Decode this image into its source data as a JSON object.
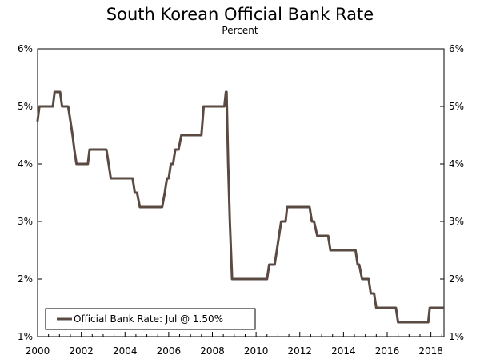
{
  "chart_data": {
    "type": "line",
    "title": "South Korean Official Bank Rate",
    "subtitle": "Percent",
    "xlabel": "",
    "ylabel": "",
    "xlim": [
      2000,
      2018.6
    ],
    "ylim": [
      1,
      6
    ],
    "x_ticks": [
      2000,
      2002,
      2004,
      2006,
      2008,
      2010,
      2012,
      2014,
      2016,
      2018
    ],
    "y_ticks": [
      1,
      2,
      3,
      4,
      5,
      6
    ],
    "y_tick_labels": [
      "1%",
      "2%",
      "3%",
      "4%",
      "5%",
      "6%"
    ],
    "legend": {
      "position": "bottom-left",
      "label": "Official Bank Rate: Jul @ 1.50%"
    },
    "series": [
      {
        "name": "Official Bank Rate: Jul @ 1.50%",
        "color": "#5a4a42",
        "x": [
          2000.0,
          2000.08,
          2000.17,
          2000.7,
          2000.78,
          2001.03,
          2001.12,
          2001.4,
          2001.5,
          2001.6,
          2001.68,
          2001.78,
          2002.3,
          2002.38,
          2002.48,
          2003.15,
          2003.25,
          2003.35,
          2003.5,
          2004.35,
          2004.45,
          2004.55,
          2004.68,
          2004.78,
          2005.7,
          2005.82,
          2005.92,
          2006.0,
          2006.1,
          2006.2,
          2006.3,
          2006.45,
          2006.58,
          2006.72,
          2007.5,
          2007.6,
          2007.7,
          2008.55,
          2008.62,
          2008.65,
          2008.72,
          2008.8,
          2008.9,
          2009.03,
          2009.12,
          2009.25,
          2009.33,
          2010.5,
          2010.6,
          2010.65,
          2010.85,
          2010.95,
          2011.05,
          2011.15,
          2011.35,
          2011.42,
          2011.5,
          2012.45,
          2012.55,
          2012.65,
          2012.8,
          2012.9,
          2013.3,
          2013.4,
          2013.5,
          2014.55,
          2014.65,
          2014.72,
          2014.85,
          2014.95,
          2015.15,
          2015.25,
          2015.4,
          2015.5,
          2016.4,
          2016.5,
          2016.6,
          2017.8,
          2017.88,
          2017.95,
          2018.55
        ],
        "values": [
          4.75,
          5.0,
          5.0,
          5.0,
          5.25,
          5.25,
          5.0,
          5.0,
          4.75,
          4.5,
          4.25,
          4.0,
          4.0,
          4.25,
          4.25,
          4.25,
          4.0,
          3.75,
          3.75,
          3.75,
          3.5,
          3.5,
          3.25,
          3.25,
          3.25,
          3.5,
          3.75,
          3.75,
          4.0,
          4.0,
          4.25,
          4.25,
          4.5,
          4.5,
          4.5,
          5.0,
          5.0,
          5.0,
          5.25,
          5.25,
          4.0,
          3.0,
          2.0,
          2.0,
          2.0,
          2.0,
          2.0,
          2.0,
          2.25,
          2.25,
          2.25,
          2.5,
          2.75,
          3.0,
          3.0,
          3.25,
          3.25,
          3.25,
          3.0,
          3.0,
          2.75,
          2.75,
          2.75,
          2.5,
          2.5,
          2.5,
          2.25,
          2.25,
          2.0,
          2.0,
          2.0,
          1.75,
          1.75,
          1.5,
          1.5,
          1.25,
          1.25,
          1.25,
          1.25,
          1.5,
          1.5
        ]
      }
    ]
  }
}
